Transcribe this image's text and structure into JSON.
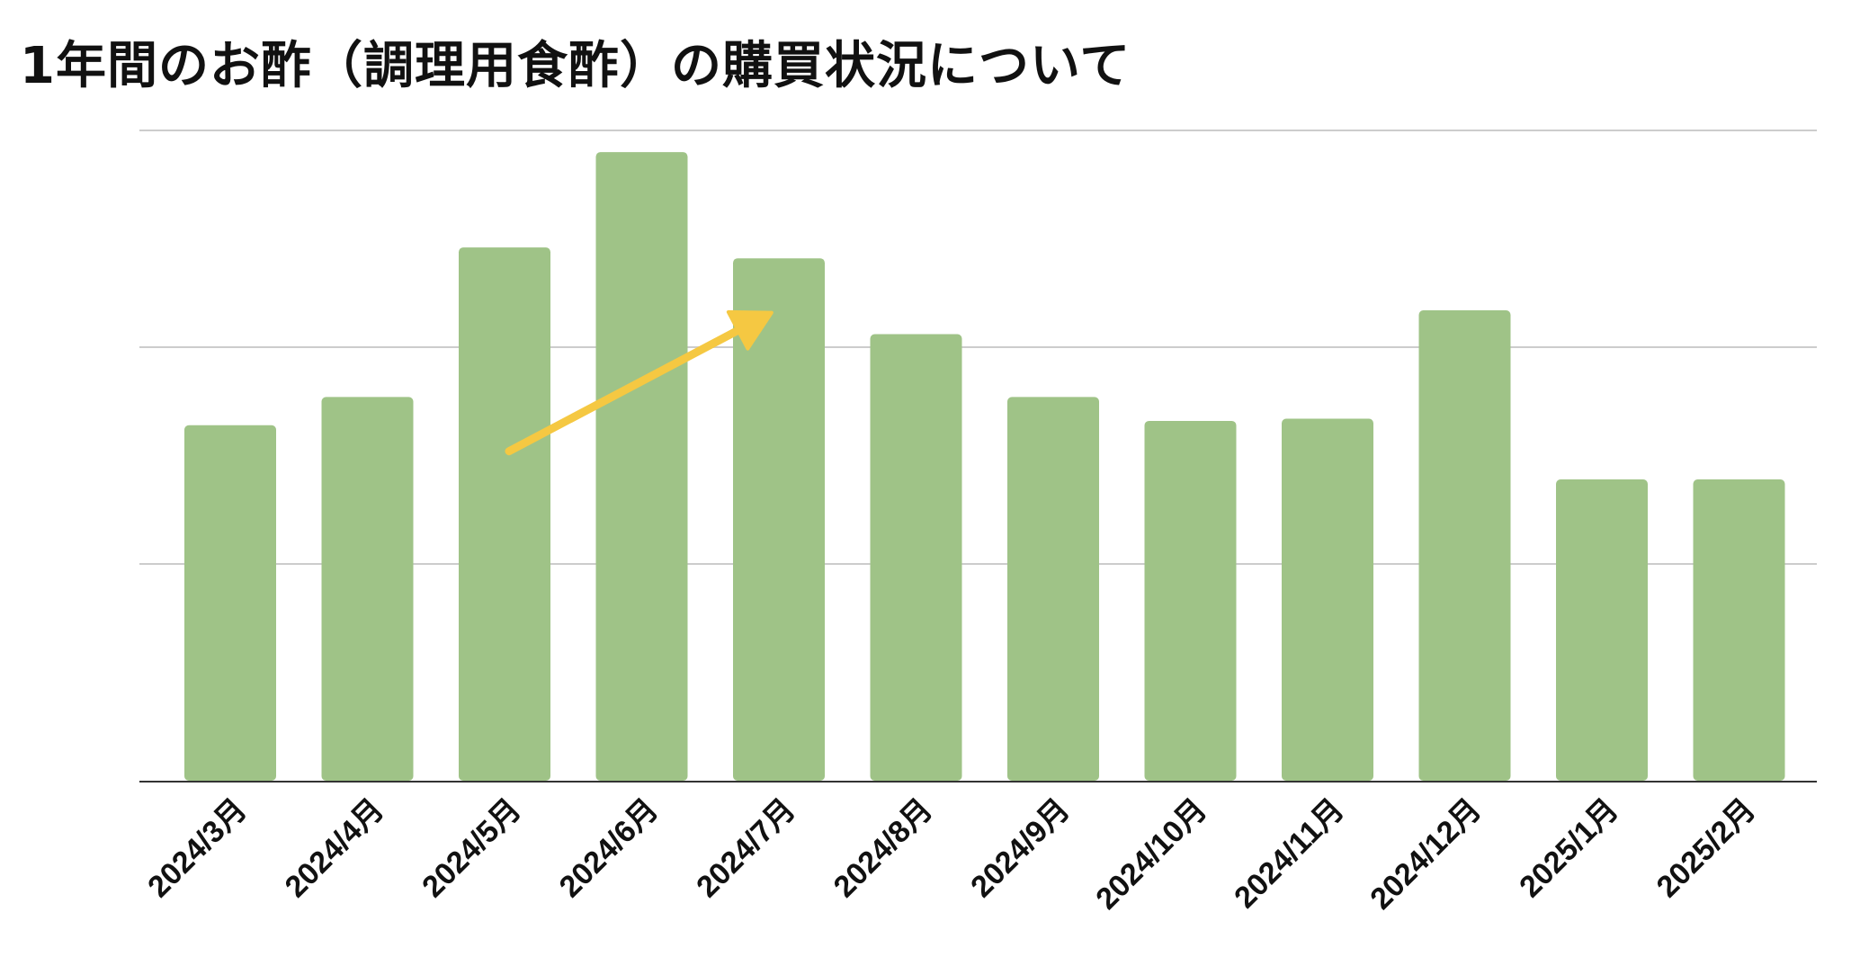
{
  "chart_data": {
    "type": "bar",
    "title": "1年間のお酢（調理用食酢）の購買状況について",
    "xlabel": "",
    "ylabel": "",
    "categories": [
      "2024/3月",
      "2024/4月",
      "2024/5月",
      "2024/6月",
      "2024/7月",
      "2024/8月",
      "2024/9月",
      "2024/10月",
      "2024/11月",
      "2024/12月",
      "2025/1月",
      "2025/2月"
    ],
    "values": [
      164,
      177,
      246,
      290,
      241,
      206,
      177,
      166,
      167,
      217,
      139,
      139
    ],
    "ylim": [
      0,
      300
    ],
    "gridlines": [
      0,
      100,
      200,
      300
    ],
    "grid": true,
    "y_tick_labels_shown": false,
    "bar_color": "#9fc387",
    "axis_color": "#333333",
    "grid_color": "#cccccc",
    "annotation": {
      "shape": "arrow",
      "color": "#f5c842",
      "from": {
        "category": "2024/5月",
        "value": 152
      },
      "to": {
        "category": "2024/7月",
        "value": 214
      }
    }
  }
}
